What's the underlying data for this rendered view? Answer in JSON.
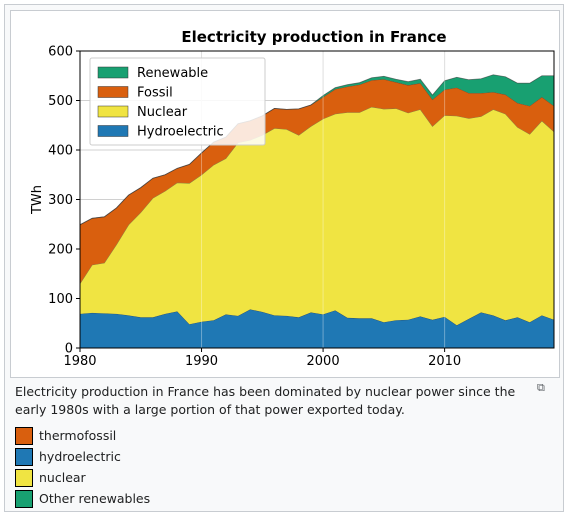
{
  "caption": "Electricity production in France has been dominated by nuclear power since the early 1980s with a large portion of that power exported today.",
  "key": [
    {
      "label": "thermofossil",
      "color": "#d95f0e"
    },
    {
      "label": "hydroelectric",
      "color": "#1f78b4"
    },
    {
      "label": "nuclear",
      "color": "#f0e442"
    },
    {
      "label": "Other renewables",
      "color": "#18a071"
    }
  ],
  "chart_data": {
    "type": "area",
    "title": "Electricity production in France",
    "xlabel": "",
    "ylabel": "TWh",
    "xlim": [
      1980,
      2019
    ],
    "ylim": [
      0,
      600
    ],
    "xticks": [
      1980,
      1990,
      2000,
      2010
    ],
    "yticks": [
      0,
      100,
      200,
      300,
      400,
      500,
      600
    ],
    "grid": true,
    "legend_position": "top-left",
    "x": [
      1980,
      1981,
      1982,
      1983,
      1984,
      1985,
      1986,
      1987,
      1988,
      1989,
      1990,
      1991,
      1992,
      1993,
      1994,
      1995,
      1996,
      1997,
      1998,
      1999,
      2000,
      2001,
      2002,
      2003,
      2004,
      2005,
      2006,
      2007,
      2008,
      2009,
      2010,
      2011,
      2012,
      2013,
      2014,
      2015,
      2016,
      2017,
      2018,
      2019
    ],
    "series": [
      {
        "name": "Hydroelectric",
        "color": "#1f78b4",
        "values": [
          69,
          71,
          70,
          69,
          66,
          62,
          62,
          69,
          74,
          48,
          53,
          56,
          68,
          65,
          78,
          73,
          66,
          65,
          62,
          72,
          68,
          76,
          61,
          60,
          60,
          52,
          56,
          57,
          64,
          57,
          63,
          46,
          59,
          72,
          66,
          56,
          62,
          52,
          66,
          57
        ]
      },
      {
        "name": "Nuclear",
        "color": "#f0e442",
        "values": [
          61,
          97,
          102,
          140,
          183,
          212,
          241,
          248,
          260,
          285,
          297,
          314,
          315,
          350,
          342,
          357,
          378,
          377,
          368,
          376,
          395,
          397,
          415,
          416,
          427,
          431,
          428,
          418,
          418,
          391,
          407,
          423,
          405,
          396,
          416,
          417,
          384,
          380,
          393,
          380
        ]
      },
      {
        "name": "Fossil",
        "color": "#d95f0e",
        "values": [
          119,
          94,
          93,
          74,
          60,
          50,
          40,
          33,
          29,
          38,
          44,
          46,
          43,
          38,
          39,
          39,
          40,
          40,
          53,
          43,
          44,
          50,
          52,
          56,
          54,
          60,
          53,
          56,
          53,
          54,
          52,
          57,
          51,
          47,
          35,
          39,
          49,
          57,
          48,
          52
        ]
      },
      {
        "name": "Renewable",
        "color": "#18a071",
        "values": [
          0,
          0,
          0,
          0,
          0,
          0,
          0,
          0,
          0,
          0,
          0,
          0,
          0,
          0,
          0,
          0,
          0,
          0,
          0,
          0,
          3,
          3,
          4,
          4,
          5,
          6,
          6,
          7,
          8,
          9,
          18,
          21,
          27,
          29,
          35,
          36,
          40,
          46,
          43,
          61
        ]
      }
    ]
  }
}
